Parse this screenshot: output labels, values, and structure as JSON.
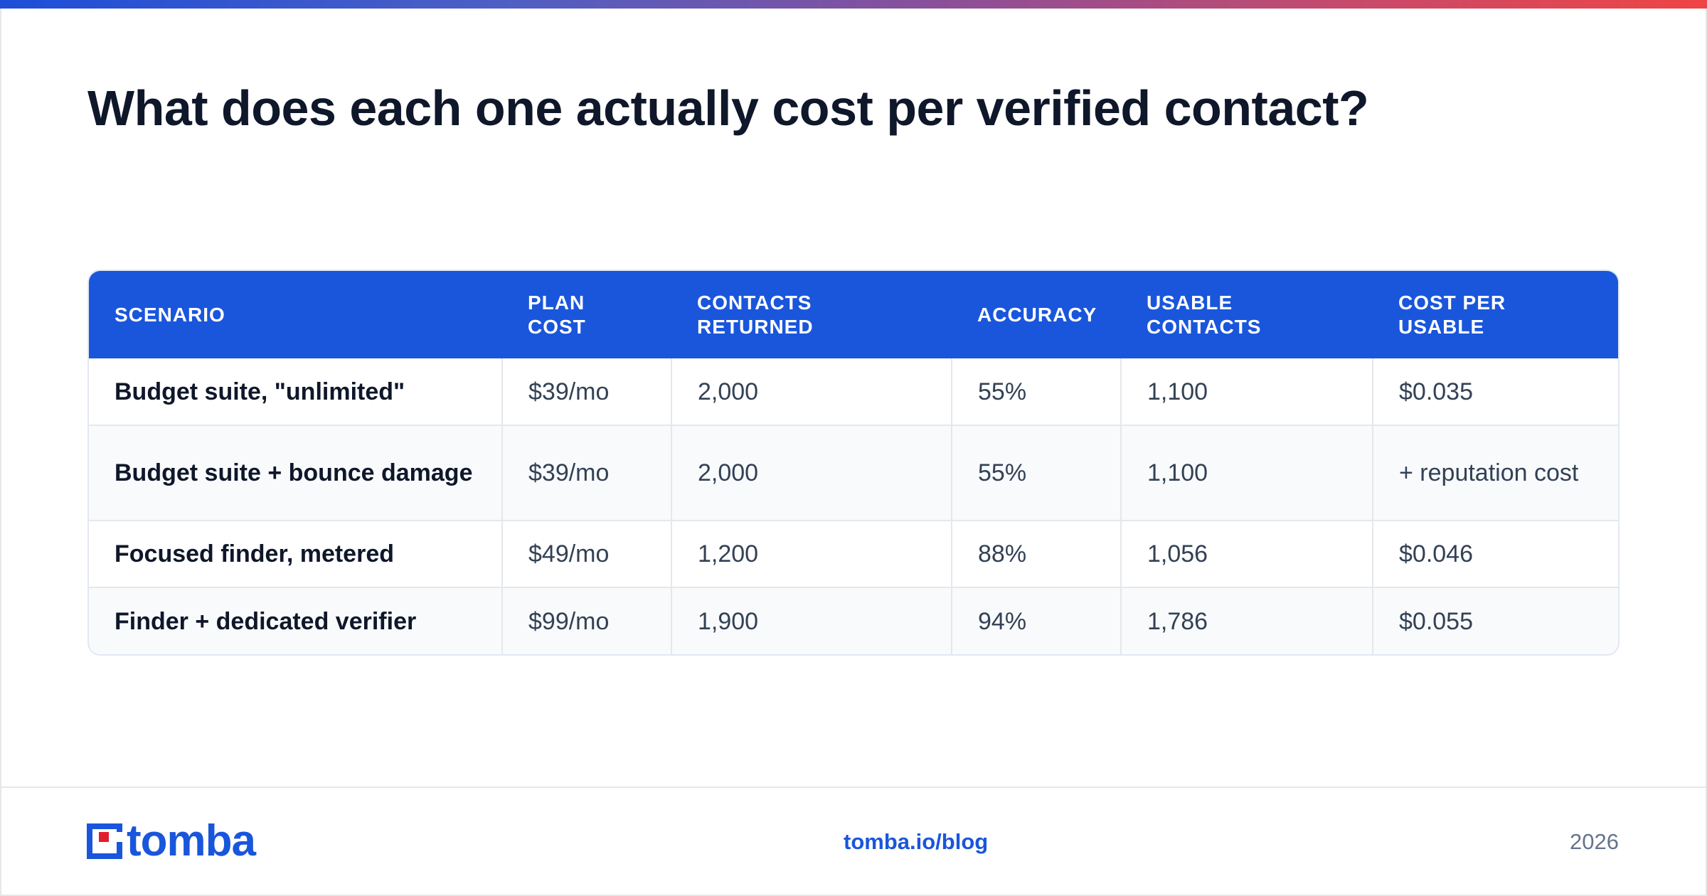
{
  "page": {
    "title": "What does each one actually cost per verified contact?"
  },
  "colors": {
    "header_blue": "#1a56db",
    "accent_red": "#e11d2e",
    "text_dark": "#0f172a",
    "text_body": "#334155",
    "muted": "#64748b"
  },
  "table": {
    "headers": [
      [
        "SCENARIO"
      ],
      [
        "PLAN",
        "COST"
      ],
      [
        "CONTACTS",
        "RETURNED"
      ],
      [
        "ACCURACY"
      ],
      [
        "USABLE",
        "CONTACTS"
      ],
      [
        "COST PER USABLE"
      ]
    ],
    "rows": [
      {
        "scenario": "Budget suite, \"unlimited\"",
        "plan_cost": "$39/mo",
        "contacts_returned": "2,000",
        "accuracy": "55%",
        "usable_contacts": "1,100",
        "cost_per_usable": "$0.035"
      },
      {
        "scenario": "Budget suite + bounce damage",
        "plan_cost": "$39/mo",
        "contacts_returned": "2,000",
        "accuracy": "55%",
        "usable_contacts": "1,100",
        "cost_per_usable": "+ reputation cost"
      },
      {
        "scenario": "Focused finder, metered",
        "plan_cost": "$49/mo",
        "contacts_returned": "1,200",
        "accuracy": "88%",
        "usable_contacts": "1,056",
        "cost_per_usable": "$0.046"
      },
      {
        "scenario": "Finder + dedicated verifier",
        "plan_cost": "$99/mo",
        "contacts_returned": "1,900",
        "accuracy": "94%",
        "usable_contacts": "1,786",
        "cost_per_usable": "$0.055"
      }
    ]
  },
  "footer": {
    "logo_text": "tomba",
    "logo_icon": "tomba-logo-mark-icon",
    "link": "tomba.io/blog",
    "year": "2026"
  }
}
